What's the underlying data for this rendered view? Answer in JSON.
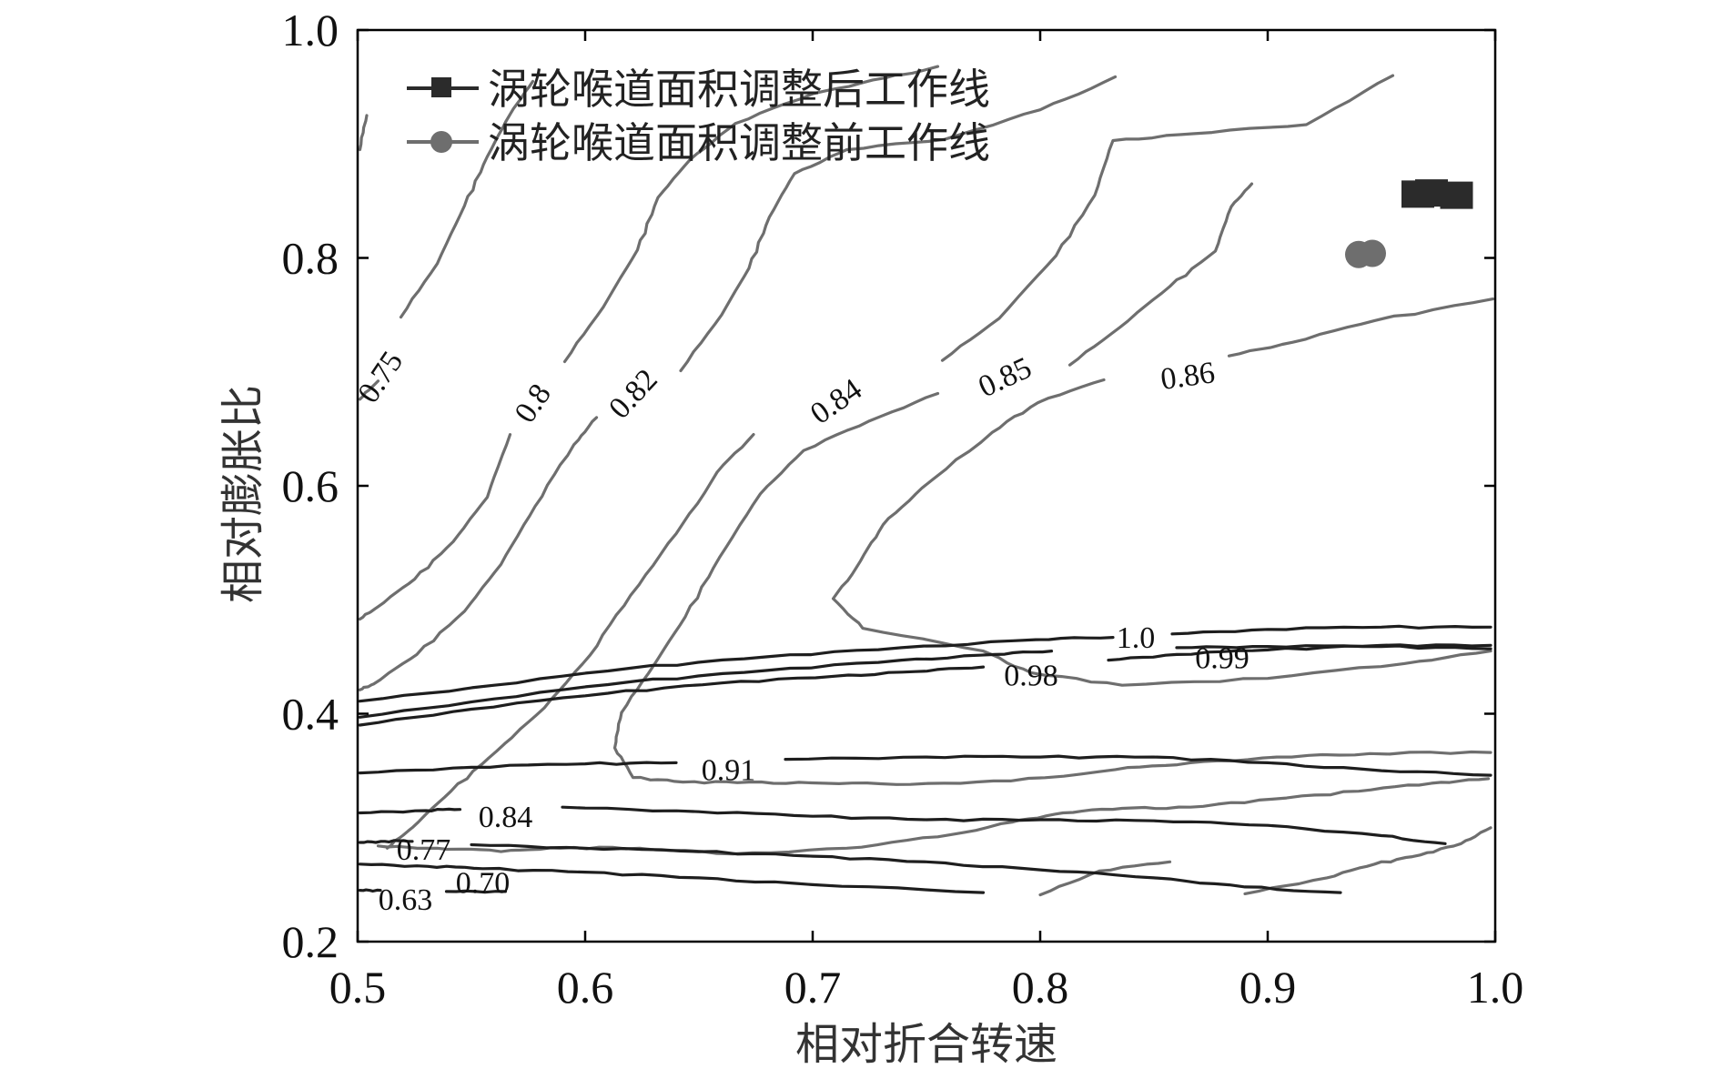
{
  "chart_data": {
    "type": "contour",
    "xlabel": "相对折合转速",
    "ylabel": "相对膨胀比",
    "xlim": [
      0.5,
      1.0
    ],
    "ylim": [
      0.2,
      1.0
    ],
    "x_ticks": [
      "0.5",
      "0.6",
      "0.7",
      "0.8",
      "0.9",
      "1.0"
    ],
    "y_ticks": [
      "0.2",
      "0.4",
      "0.6",
      "0.8",
      "1.0"
    ],
    "grid": false,
    "legend_position": "top-left",
    "legend": [
      {
        "label": "涡轮喉道面积调整后工作线",
        "marker": "square",
        "color": "#2b2b2b"
      },
      {
        "label": "涡轮喉道面积调整前工作线",
        "marker": "circle",
        "color": "#6e6e6e"
      }
    ],
    "series": [
      {
        "name": "涡轮喉道面积调整后工作线",
        "color": "#2b2b2b",
        "x": [
          0.966,
          0.972,
          0.983
        ],
        "y": [
          0.856,
          0.857,
          0.855
        ]
      },
      {
        "name": "涡轮喉道面积调整前工作线",
        "color": "#6e6e6e",
        "x": [
          0.94,
          0.946
        ],
        "y": [
          0.803,
          0.804
        ]
      }
    ],
    "efficiency_contours": {
      "color": "#6e6e6e",
      "lines": [
        {
          "level": "0.75",
          "label_at": [
            0.511,
            0.694
          ],
          "label_angle": -56,
          "points": [
            [
              0.501,
              0.895
            ],
            [
              0.504,
              0.925
            ]
          ]
        },
        {
          "level": "0.75",
          "points": [
            [
              0.501,
              0.676
            ],
            [
              0.509,
              0.692
            ]
          ]
        },
        {
          "level": "0.75",
          "points": [
            [
              0.519,
              0.748
            ],
            [
              0.535,
              0.795
            ],
            [
              0.547,
              0.846
            ],
            [
              0.557,
              0.889
            ],
            [
              0.567,
              0.926
            ],
            [
              0.577,
              0.955
            ]
          ]
        },
        {
          "level": "0.8",
          "label_at": [
            0.578,
            0.671
          ],
          "label_angle": -56,
          "points": [
            [
              0.501,
              0.483
            ],
            [
              0.509,
              0.494
            ],
            [
              0.525,
              0.518
            ],
            [
              0.542,
              0.551
            ],
            [
              0.557,
              0.59
            ],
            [
              0.567,
              0.645
            ]
          ]
        },
        {
          "level": "0.8",
          "points": [
            [
              0.591,
              0.709
            ],
            [
              0.608,
              0.757
            ],
            [
              0.623,
              0.807
            ],
            [
              0.632,
              0.853
            ],
            [
              0.646,
              0.886
            ],
            [
              0.666,
              0.918
            ],
            [
              0.7,
              0.944
            ],
            [
              0.732,
              0.958
            ],
            [
              0.755,
              0.968
            ]
          ]
        },
        {
          "level": "0.82",
          "label_at": [
            0.622,
            0.679
          ],
          "label_angle": -47,
          "points": [
            [
              0.501,
              0.421
            ],
            [
              0.507,
              0.426
            ],
            [
              0.526,
              0.452
            ],
            [
              0.547,
              0.49
            ],
            [
              0.563,
              0.531
            ],
            [
              0.578,
              0.582
            ],
            [
              0.595,
              0.636
            ],
            [
              0.605,
              0.66
            ]
          ]
        },
        {
          "level": "0.82",
          "points": [
            [
              0.642,
              0.701
            ],
            [
              0.66,
              0.75
            ],
            [
              0.672,
              0.791
            ],
            [
              0.681,
              0.836
            ],
            [
              0.692,
              0.874
            ],
            [
              0.715,
              0.895
            ],
            [
              0.758,
              0.904
            ],
            [
              0.8,
              0.93
            ],
            [
              0.833,
              0.959
            ]
          ]
        },
        {
          "level": "0.82",
          "points": [
            [
              0.8,
              0.241
            ],
            [
              0.826,
              0.262
            ],
            [
              0.857,
              0.27
            ]
          ]
        },
        {
          "level": "0.82",
          "points": [
            [
              0.89,
              0.242
            ],
            [
              0.926,
              0.256
            ],
            [
              0.947,
              0.268
            ],
            [
              0.967,
              0.276
            ],
            [
              0.985,
              0.286
            ],
            [
              0.998,
              0.3
            ]
          ]
        },
        {
          "level": "0.84",
          "label_at": [
            0.711,
            0.672
          ],
          "label_angle": -35,
          "points": [
            [
              0.513,
              0.282
            ],
            [
              0.524,
              0.3
            ],
            [
              0.541,
              0.332
            ],
            [
              0.561,
              0.367
            ],
            [
              0.582,
              0.405
            ],
            [
              0.602,
              0.451
            ],
            [
              0.62,
              0.504
            ],
            [
              0.64,
              0.558
            ],
            [
              0.658,
              0.612
            ],
            [
              0.674,
              0.645
            ]
          ]
        },
        {
          "level": "0.84",
          "points": [
            [
              0.757,
              0.71
            ],
            [
              0.782,
              0.747
            ],
            [
              0.807,
              0.802
            ],
            [
              0.824,
              0.855
            ],
            [
              0.832,
              0.903
            ],
            [
              0.867,
              0.909
            ],
            [
              0.917,
              0.917
            ],
            [
              0.955,
              0.96
            ]
          ]
        },
        {
          "level": "0.85",
          "label_at": [
            0.785,
            0.693
          ],
          "label_angle": -25,
          "points": [
            [
              0.616,
              0.401
            ],
            [
              0.613,
              0.37
            ],
            [
              0.621,
              0.344
            ],
            [
              0.643,
              0.34
            ],
            [
              0.672,
              0.34
            ],
            [
              0.705,
              0.339
            ],
            [
              0.743,
              0.338
            ],
            [
              0.787,
              0.341
            ],
            [
              0.833,
              0.351
            ],
            [
              0.866,
              0.357
            ],
            [
              0.904,
              0.362
            ],
            [
              0.945,
              0.365
            ],
            [
              0.998,
              0.366
            ]
          ]
        },
        {
          "level": "0.85",
          "points": [
            [
              0.616,
              0.401
            ],
            [
              0.63,
              0.442
            ],
            [
              0.644,
              0.485
            ],
            [
              0.659,
              0.537
            ],
            [
              0.677,
              0.593
            ],
            [
              0.696,
              0.631
            ],
            [
              0.725,
              0.657
            ],
            [
              0.755,
              0.681
            ]
          ]
        },
        {
          "level": "0.85",
          "points": [
            [
              0.813,
              0.706
            ],
            [
              0.835,
              0.739
            ],
            [
              0.857,
              0.775
            ],
            [
              0.877,
              0.806
            ],
            [
              0.884,
              0.845
            ],
            [
              0.893,
              0.865
            ]
          ]
        },
        {
          "level": "0.86",
          "label_at": [
            0.865,
            0.694
          ],
          "label_angle": -8,
          "points": [
            [
              0.997,
              0.343
            ],
            [
              0.972,
              0.339
            ],
            [
              0.94,
              0.332
            ],
            [
              0.902,
              0.325
            ],
            [
              0.866,
              0.318
            ],
            [
              0.836,
              0.317
            ],
            [
              0.81,
              0.313
            ],
            [
              0.788,
              0.305
            ],
            [
              0.755,
              0.292
            ],
            [
              0.715,
              0.282
            ],
            [
              0.665,
              0.277
            ],
            [
              0.624,
              0.282
            ],
            [
              0.589,
              0.282
            ],
            [
              0.563,
              0.279
            ],
            [
              0.535,
              0.282
            ],
            [
              0.509,
              0.284
            ]
          ]
        },
        {
          "level": "0.86",
          "points": [
            [
              0.998,
              0.455
            ],
            [
              0.96,
              0.444
            ],
            [
              0.9,
              0.431
            ],
            [
              0.836,
              0.425
            ],
            [
              0.796,
              0.436
            ],
            [
              0.775,
              0.455
            ],
            [
              0.722,
              0.475
            ],
            [
              0.709,
              0.501
            ],
            [
              0.721,
              0.534
            ],
            [
              0.731,
              0.566
            ],
            [
              0.748,
              0.598
            ],
            [
              0.779,
              0.647
            ],
            [
              0.799,
              0.673
            ],
            [
              0.828,
              0.693
            ]
          ]
        },
        {
          "level": "0.86",
          "points": [
            [
              0.883,
              0.714
            ],
            [
              0.911,
              0.726
            ],
            [
              0.947,
              0.745
            ],
            [
              0.999,
              0.764
            ]
          ]
        }
      ]
    },
    "flow_contours": {
      "color": "#1e1e1e",
      "lines": [
        {
          "level": "1.0",
          "label_at": [
            0.842,
            0.464
          ],
          "label_angle": 0,
          "points": [
            [
              0.501,
              0.411
            ],
            [
              0.56,
              0.425
            ],
            [
              0.62,
              0.44
            ],
            [
              0.68,
              0.45
            ],
            [
              0.739,
              0.458
            ],
            [
              0.798,
              0.465
            ],
            [
              0.832,
              0.467
            ]
          ]
        },
        {
          "level": "1.0",
          "points": [
            [
              0.858,
              0.47
            ],
            [
              0.9,
              0.474
            ],
            [
              0.95,
              0.476
            ],
            [
              0.998,
              0.476
            ]
          ]
        },
        {
          "level": "0.99",
          "label_at": [
            0.88,
            0.446
          ],
          "label_angle": 0,
          "points": [
            [
              0.501,
              0.397
            ],
            [
              0.56,
              0.413
            ],
            [
              0.62,
              0.428
            ],
            [
              0.68,
              0.438
            ],
            [
              0.739,
              0.447
            ],
            [
              0.78,
              0.452
            ],
            [
              0.805,
              0.455
            ]
          ]
        },
        {
          "level": "0.99",
          "points": [
            [
              0.86,
              0.458
            ],
            [
              0.9,
              0.459
            ],
            [
              0.95,
              0.459
            ],
            [
              0.998,
              0.457
            ]
          ]
        },
        {
          "level": "0.98",
          "label_at": [
            0.796,
            0.431
          ],
          "label_angle": 0,
          "points": [
            [
              0.501,
              0.39
            ],
            [
              0.55,
              0.404
            ],
            [
              0.61,
              0.418
            ],
            [
              0.66,
              0.427
            ],
            [
              0.71,
              0.433
            ],
            [
              0.745,
              0.437
            ],
            [
              0.775,
              0.441
            ]
          ]
        },
        {
          "level": "0.98",
          "points": [
            [
              0.83,
              0.447
            ],
            [
              0.86,
              0.452
            ],
            [
              0.9,
              0.456
            ],
            [
              0.95,
              0.46
            ],
            [
              0.998,
              0.46
            ]
          ]
        },
        {
          "level": "0.91",
          "label_at": [
            0.663,
            0.348
          ],
          "label_angle": 0,
          "points": [
            [
              0.501,
              0.348
            ],
            [
              0.55,
              0.353
            ],
            [
              0.6,
              0.356
            ],
            [
              0.64,
              0.357
            ]
          ]
        },
        {
          "level": "0.91",
          "points": [
            [
              0.688,
              0.36
            ],
            [
              0.75,
              0.362
            ],
            [
              0.8,
              0.362
            ],
            [
              0.85,
              0.362
            ],
            [
              0.9,
              0.357
            ],
            [
              0.95,
              0.35
            ],
            [
              0.998,
              0.346
            ]
          ]
        },
        {
          "level": "0.84",
          "label_at": [
            0.565,
            0.307
          ],
          "label_angle": 0,
          "points": [
            [
              0.501,
              0.313
            ],
            [
              0.53,
              0.315
            ],
            [
              0.545,
              0.316
            ]
          ]
        },
        {
          "level": "0.84",
          "points": [
            [
              0.59,
              0.318
            ],
            [
              0.65,
              0.314
            ],
            [
              0.7,
              0.31
            ],
            [
              0.75,
              0.307
            ],
            [
              0.8,
              0.307
            ],
            [
              0.85,
              0.306
            ],
            [
              0.9,
              0.302
            ],
            [
              0.95,
              0.293
            ],
            [
              0.978,
              0.286
            ]
          ]
        },
        {
          "level": "0.77",
          "label_at": [
            0.529,
            0.278
          ],
          "label_angle": 0,
          "points": [
            [
              0.501,
              0.287
            ],
            [
              0.512,
              0.288
            ],
            [
              0.524,
              0.288
            ]
          ]
        },
        {
          "level": "0.77",
          "points": [
            [
              0.55,
              0.285
            ],
            [
              0.6,
              0.282
            ],
            [
              0.65,
              0.279
            ],
            [
              0.7,
              0.275
            ],
            [
              0.75,
              0.27
            ],
            [
              0.8,
              0.263
            ],
            [
              0.85,
              0.256
            ],
            [
              0.89,
              0.248
            ],
            [
              0.932,
              0.243
            ]
          ]
        },
        {
          "level": "0.70",
          "label_at": [
            0.555,
            0.249
          ],
          "label_angle": 0,
          "points": [
            [
              0.501,
              0.268
            ],
            [
              0.531,
              0.266
            ],
            [
              0.555,
              0.264
            ],
            [
              0.6,
              0.261
            ],
            [
              0.65,
              0.256
            ],
            [
              0.7,
              0.25
            ],
            [
              0.775,
              0.243
            ]
          ]
        },
        {
          "level": "0.63",
          "label_at": [
            0.521,
            0.234
          ],
          "label_angle": 0,
          "points": [
            [
              0.501,
              0.245
            ],
            [
              0.51,
              0.245
            ]
          ]
        },
        {
          "level": "0.63",
          "points": [
            [
              0.539,
              0.244
            ],
            [
              0.565,
              0.244
            ]
          ]
        }
      ]
    }
  }
}
